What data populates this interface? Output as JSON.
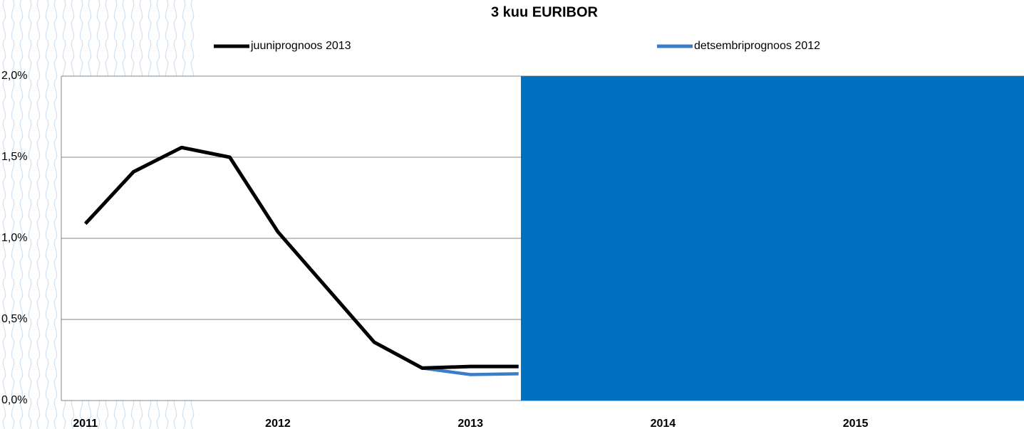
{
  "chart_data": {
    "type": "line",
    "title": "3 kuu EURIBOR",
    "categories": [
      "2011",
      null,
      null,
      null,
      "2012",
      null,
      null,
      null,
      "2013",
      null,
      null,
      null,
      "2014",
      null,
      null,
      null,
      "2015",
      null,
      null,
      null
    ],
    "series": [
      {
        "name": "juuniprognoos 2013",
        "color": "#000000",
        "values": [
          1.09,
          1.41,
          1.56,
          1.5,
          1.04,
          0.7,
          0.36,
          0.2,
          0.21,
          0.21,
          null,
          null,
          null,
          null,
          null,
          null,
          null,
          null,
          null,
          null
        ]
      },
      {
        "name": "detsembriprognoos 2012",
        "color": "#3b7dc8",
        "values": [
          null,
          null,
          null,
          null,
          null,
          null,
          null,
          0.2,
          0.16,
          0.165,
          null,
          null,
          null,
          null,
          null,
          null,
          null,
          null,
          null,
          null
        ]
      }
    ],
    "ylim": [
      0,
      2
    ],
    "yticks": [
      {
        "value": 0,
        "label": "0,0%"
      },
      {
        "value": 0.5,
        "label": "0,5%"
      },
      {
        "value": 1,
        "label": "1,0%"
      },
      {
        "value": 1.5,
        "label": "1,5%"
      },
      {
        "value": 2,
        "label": "2,0%"
      }
    ],
    "grid": true,
    "legend": "top"
  }
}
